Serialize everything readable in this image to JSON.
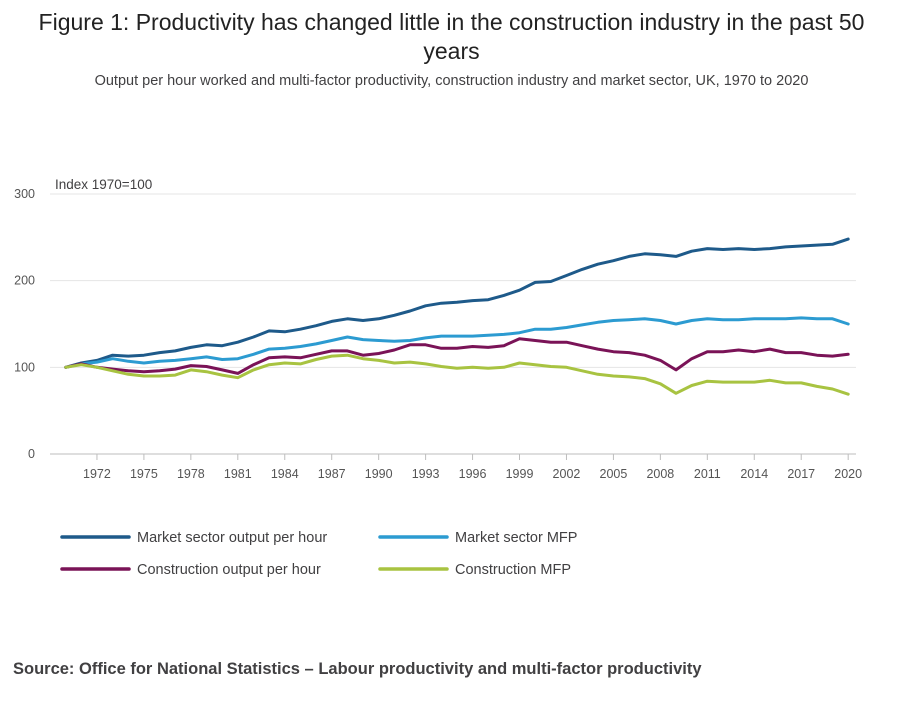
{
  "title": "Figure 1: Productivity has changed little in the construction industry in the past 50 years",
  "subtitle": "Output per hour worked and multi-factor productivity, construction industry and market sector, UK, 1970 to 2020",
  "source": "Source: Office for National Statistics – Labour productivity and multi-factor productivity",
  "chart_data": {
    "type": "line",
    "unit_label": "Index 1970=100",
    "x": [
      1970,
      1971,
      1972,
      1973,
      1974,
      1975,
      1976,
      1977,
      1978,
      1979,
      1980,
      1981,
      1982,
      1983,
      1984,
      1985,
      1986,
      1987,
      1988,
      1989,
      1990,
      1991,
      1992,
      1993,
      1994,
      1995,
      1996,
      1997,
      1998,
      1999,
      2000,
      2001,
      2002,
      2003,
      2004,
      2005,
      2006,
      2007,
      2008,
      2009,
      2010,
      2011,
      2012,
      2013,
      2014,
      2015,
      2016,
      2017,
      2018,
      2019,
      2020
    ],
    "xlim": [
      1969,
      2020.5
    ],
    "ylim": [
      0,
      300
    ],
    "x_ticks": [
      "1972",
      "1975",
      "1978",
      "1981",
      "1984",
      "1987",
      "1990",
      "1993",
      "1996",
      "1999",
      "2002",
      "2005",
      "2008",
      "2011",
      "2014",
      "2017",
      "2020"
    ],
    "y_ticks": [
      "0",
      "100",
      "200",
      "300"
    ],
    "grid": true,
    "legend_position": "bottom",
    "series": [
      {
        "name": "Market sector output per hour",
        "color": "#1e5a8a",
        "values": [
          100,
          105,
          108,
          114,
          113,
          114,
          117,
          119,
          123,
          126,
          125,
          129,
          135,
          142,
          141,
          144,
          148,
          153,
          156,
          154,
          156,
          160,
          165,
          171,
          174,
          175,
          177,
          178,
          183,
          189,
          198,
          199,
          206,
          213,
          219,
          223,
          228,
          231,
          230,
          228,
          234,
          237,
          236,
          237,
          236,
          237,
          239,
          240,
          241,
          242,
          248
        ]
      },
      {
        "name": "Market sector MFP",
        "color": "#2c9bd1",
        "values": [
          100,
          104,
          106,
          110,
          107,
          105,
          107,
          108,
          110,
          112,
          109,
          110,
          115,
          121,
          122,
          124,
          127,
          131,
          135,
          132,
          131,
          130,
          131,
          134,
          136,
          136,
          136,
          137,
          138,
          140,
          144,
          144,
          146,
          149,
          152,
          154,
          155,
          156,
          154,
          150,
          154,
          156,
          155,
          155,
          156,
          156,
          156,
          157,
          156,
          156,
          150
        ]
      },
      {
        "name": "Construction output per hour",
        "color": "#7a1357",
        "values": [
          100,
          104,
          100,
          98,
          96,
          95,
          96,
          98,
          102,
          101,
          97,
          93,
          103,
          111,
          112,
          111,
          115,
          119,
          119,
          114,
          116,
          120,
          126,
          126,
          122,
          122,
          124,
          123,
          125,
          133,
          131,
          129,
          129,
          125,
          121,
          118,
          117,
          114,
          108,
          97,
          110,
          118,
          118,
          120,
          118,
          121,
          117,
          117,
          114,
          113,
          115
        ]
      },
      {
        "name": "Construction MFP",
        "color": "#a8c341",
        "values": [
          100,
          103,
          100,
          96,
          92,
          90,
          90,
          91,
          97,
          95,
          91,
          88,
          97,
          103,
          105,
          104,
          109,
          113,
          114,
          110,
          108,
          105,
          106,
          104,
          101,
          99,
          100,
          99,
          100,
          105,
          103,
          101,
          100,
          96,
          92,
          90,
          89,
          87,
          81,
          70,
          79,
          84,
          83,
          83,
          83,
          85,
          82,
          82,
          78,
          75,
          69
        ]
      }
    ]
  }
}
